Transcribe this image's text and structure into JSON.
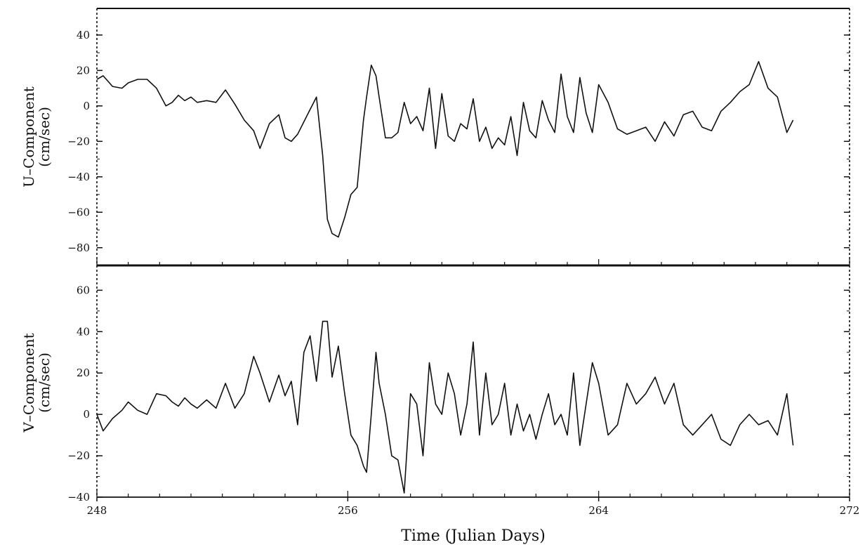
{
  "chart_data": [
    {
      "type": "line",
      "ylabel": [
        "U–Component",
        "(cm/sec)"
      ],
      "ylim": [
        -90,
        55
      ],
      "xlim": [
        248,
        272
      ],
      "yticks": [
        40,
        20,
        0,
        -20,
        -40,
        -60,
        -80
      ],
      "ytick_labels": [
        "40",
        "20",
        "0",
        "−20",
        "−40",
        "−60",
        "−80"
      ],
      "grid": false,
      "series": [
        {
          "x": [
            248.0,
            248.2,
            248.5,
            248.8,
            249.0,
            249.3,
            249.6,
            249.9,
            250.2,
            250.4,
            250.6,
            250.8,
            251.0,
            251.2,
            251.5,
            251.8,
            252.1,
            252.4,
            252.7,
            253.0,
            253.2,
            253.5,
            253.8,
            254.0,
            254.2,
            254.4,
            254.6,
            254.8,
            255.0,
            255.2,
            255.35,
            255.5,
            255.7,
            255.9,
            256.1,
            256.3,
            256.5,
            256.6,
            256.75,
            256.9,
            257.0,
            257.2,
            257.4,
            257.6,
            257.8,
            258.0,
            258.2,
            258.4,
            258.6,
            258.8,
            259.0,
            259.2,
            259.4,
            259.6,
            259.8,
            260.0,
            260.2,
            260.4,
            260.6,
            260.8,
            261.0,
            261.2,
            261.4,
            261.6,
            261.8,
            262.0,
            262.2,
            262.4,
            262.6,
            262.8,
            263.0,
            263.2,
            263.4,
            263.6,
            263.8,
            264.0,
            264.3,
            264.6,
            264.9,
            265.2,
            265.5,
            265.8,
            266.1,
            266.4,
            266.7,
            267.0,
            267.3,
            267.6,
            267.9,
            268.2,
            268.5,
            268.8,
            269.1,
            269.4,
            269.7,
            270.0,
            270.2
          ],
          "y": [
            15,
            17,
            11,
            10,
            13,
            15,
            15,
            10,
            0,
            2,
            6,
            3,
            5,
            2,
            3,
            2,
            9,
            1,
            -8,
            -14,
            -24,
            -10,
            -5,
            -18,
            -20,
            -16,
            -9,
            -2,
            5,
            -28,
            -64,
            -72,
            -74,
            -63,
            -50,
            -46,
            -8,
            5,
            23,
            17,
            5,
            -18,
            -18,
            -15,
            2,
            -10,
            -6,
            -14,
            10,
            -24,
            7,
            -17,
            -20,
            -10,
            -13,
            4,
            -20,
            -12,
            -24,
            -18,
            -22,
            -6,
            -28,
            2,
            -14,
            -18,
            3,
            -8,
            -15,
            18,
            -6,
            -15,
            16,
            -4,
            -15,
            12,
            2,
            -13,
            -16,
            -14,
            -12,
            -20,
            -9,
            -17,
            -5,
            -3,
            -12,
            -14,
            -3,
            2,
            8,
            12,
            25,
            10,
            5,
            -15,
            -8
          ]
        }
      ]
    },
    {
      "type": "line",
      "ylabel": [
        "V–Component",
        "(cm/sec)"
      ],
      "xlabel": "Time (Julian Days)",
      "ylim": [
        -40,
        72
      ],
      "xlim": [
        248,
        272
      ],
      "yticks": [
        60,
        40,
        20,
        0,
        -20,
        -40
      ],
      "ytick_labels": [
        "60",
        "40",
        "20",
        "0",
        "−20",
        "−40"
      ],
      "xticks": [
        248,
        256,
        264,
        272
      ],
      "xtick_labels": [
        "248",
        "256",
        "264",
        "272"
      ],
      "grid": false,
      "series": [
        {
          "x": [
            248.0,
            248.2,
            248.5,
            248.8,
            249.0,
            249.3,
            249.6,
            249.9,
            250.2,
            250.4,
            250.6,
            250.8,
            251.0,
            251.2,
            251.5,
            251.8,
            252.1,
            252.4,
            252.7,
            253.0,
            253.2,
            253.5,
            253.8,
            254.0,
            254.2,
            254.4,
            254.6,
            254.8,
            255.0,
            255.2,
            255.35,
            255.5,
            255.7,
            255.9,
            256.1,
            256.3,
            256.5,
            256.6,
            256.75,
            256.9,
            257.0,
            257.2,
            257.4,
            257.6,
            257.8,
            258.0,
            258.2,
            258.4,
            258.6,
            258.8,
            259.0,
            259.2,
            259.4,
            259.6,
            259.8,
            260.0,
            260.2,
            260.4,
            260.6,
            260.8,
            261.0,
            261.2,
            261.4,
            261.6,
            261.8,
            262.0,
            262.2,
            262.4,
            262.6,
            262.8,
            263.0,
            263.2,
            263.4,
            263.6,
            263.8,
            264.0,
            264.3,
            264.6,
            264.9,
            265.2,
            265.5,
            265.8,
            266.1,
            266.4,
            266.7,
            267.0,
            267.3,
            267.6,
            267.9,
            268.2,
            268.5,
            268.8,
            269.1,
            269.4,
            269.7,
            270.0,
            270.2
          ],
          "y": [
            0,
            -8,
            -2,
            2,
            6,
            2,
            0,
            10,
            9,
            6,
            4,
            8,
            5,
            3,
            7,
            3,
            15,
            3,
            10,
            28,
            20,
            6,
            19,
            9,
            16,
            -5,
            30,
            38,
            16,
            45,
            45,
            18,
            33,
            10,
            -10,
            -15,
            -25,
            -28,
            0,
            30,
            15,
            0,
            -20,
            -22,
            -38,
            10,
            5,
            -20,
            25,
            5,
            0,
            20,
            10,
            -10,
            5,
            35,
            -10,
            20,
            -5,
            0,
            15,
            -10,
            5,
            -8,
            0,
            -12,
            0,
            10,
            -5,
            0,
            -10,
            20,
            -15,
            5,
            25,
            15,
            -10,
            -5,
            15,
            5,
            10,
            18,
            5,
            15,
            -5,
            -10,
            -5,
            0,
            -12,
            -15,
            -5,
            0,
            -5,
            -3,
            -10,
            10,
            -15
          ]
        }
      ]
    }
  ]
}
